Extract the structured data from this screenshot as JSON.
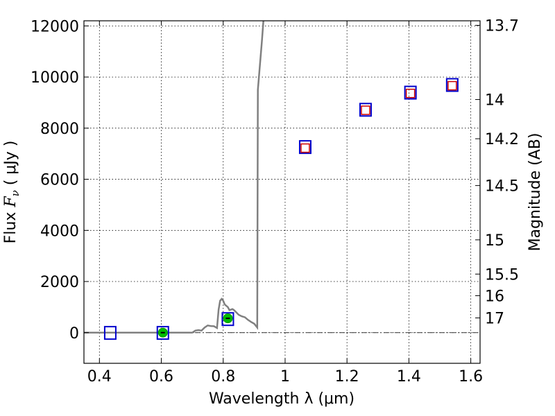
{
  "chart_data": {
    "type": "scatter",
    "xlabel": "Wavelength  λ (μm)",
    "ylabel_prefix": "Flux  ",
    "ylabel_symbol": "F",
    "ylabel_subscript": "ν",
    "ylabel_suffix": "  ( μJy )",
    "y2label": "Magnitude (AB)",
    "xlim": [
      0.35,
      1.63
    ],
    "ylim": [
      -1200,
      12200
    ],
    "grid": true,
    "x_ticks": [
      0.4,
      0.6,
      0.8,
      1.0,
      1.2,
      1.4,
      1.6
    ],
    "x_tick_labels": [
      "0.4",
      "0.6",
      "0.8",
      "1",
      "1.2",
      "1.4",
      "1.6"
    ],
    "y_ticks": [
      0,
      2000,
      4000,
      6000,
      8000,
      10000,
      12000
    ],
    "y_tick_labels": [
      "0",
      "2000",
      "4000",
      "6000",
      "8000",
      "10000",
      "12000"
    ],
    "y2_ticks": [
      {
        "label": "13.7",
        "mag": 13.7
      },
      {
        "label": "14",
        "mag": 14.0
      },
      {
        "label": "14.2",
        "mag": 14.2
      },
      {
        "label": "14.5",
        "mag": 14.5
      },
      {
        "label": "15",
        "mag": 15.0
      },
      {
        "label": "15.5",
        "mag": 15.5
      },
      {
        "label": "16",
        "mag": 16.0
      },
      {
        "label": "17",
        "mag": 17.0
      }
    ],
    "series": [
      {
        "kind": "line",
        "color": "#808080",
        "x": [
          0.35,
          0.7,
          0.71,
          0.72,
          0.73,
          0.74,
          0.75,
          0.76,
          0.77,
          0.78,
          0.785,
          0.79,
          0.795,
          0.8,
          0.805,
          0.81,
          0.815,
          0.82,
          0.825,
          0.83,
          0.835,
          0.84,
          0.85,
          0.86,
          0.87,
          0.88,
          0.89,
          0.9,
          0.91,
          0.912,
          0.925,
          0.93
        ],
        "y": [
          0,
          0,
          80,
          100,
          80,
          200,
          280,
          260,
          250,
          180,
          900,
          1250,
          1320,
          1250,
          1100,
          1050,
          1000,
          880,
          900,
          920,
          880,
          820,
          700,
          640,
          600,
          500,
          420,
          350,
          200,
          9500,
          11400,
          12200
        ]
      },
      {
        "kind": "observed",
        "edge": "#0000cc",
        "x": [
          0.435,
          0.605,
          0.815,
          1.065,
          1.26,
          1.405,
          1.54
        ],
        "y": [
          -10,
          -10,
          530,
          7260,
          8720,
          9390,
          9690
        ]
      },
      {
        "kind": "model_square",
        "edge": "#cc0000",
        "x": [
          1.065,
          1.26,
          1.405,
          1.54
        ],
        "y": [
          7220,
          8700,
          9360,
          9660
        ]
      },
      {
        "kind": "model_circle",
        "fill": "#00bb00",
        "x": [
          0.605,
          0.815
        ],
        "y": [
          0,
          560
        ]
      }
    ]
  }
}
